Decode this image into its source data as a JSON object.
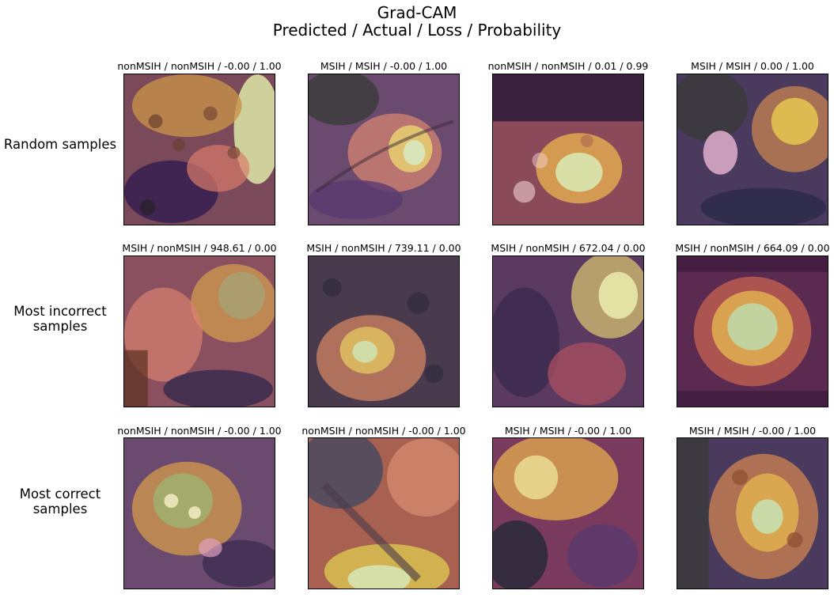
{
  "figure": {
    "title_line1": "Grad-CAM",
    "title_line2": "Predicted / Actual / Loss / Probability"
  },
  "rows": [
    {
      "label": "Random samples",
      "samples": [
        {
          "caption": "nonMSIH / nonMSIH / -0.00 / 1.00",
          "predicted": "nonMSIH",
          "actual": "nonMSIH",
          "loss": "-0.00",
          "probability": "1.00"
        },
        {
          "caption": "MSIH / MSIH / -0.00 / 1.00",
          "predicted": "MSIH",
          "actual": "MSIH",
          "loss": "-0.00",
          "probability": "1.00"
        },
        {
          "caption": "nonMSIH / nonMSIH / 0.01 / 0.99",
          "predicted": "nonMSIH",
          "actual": "nonMSIH",
          "loss": "0.01",
          "probability": "0.99"
        },
        {
          "caption": "MSIH / MSIH / 0.00 / 1.00",
          "predicted": "MSIH",
          "actual": "MSIH",
          "loss": "0.00",
          "probability": "1.00"
        }
      ]
    },
    {
      "label": "Most incorrect\nsamples",
      "samples": [
        {
          "caption": "MSIH / nonMSIH / 948.61 / 0.00",
          "predicted": "MSIH",
          "actual": "nonMSIH",
          "loss": "948.61",
          "probability": "0.00"
        },
        {
          "caption": "MSIH / nonMSIH / 739.11 / 0.00",
          "predicted": "MSIH",
          "actual": "nonMSIH",
          "loss": "739.11",
          "probability": "0.00"
        },
        {
          "caption": "MSIH / nonMSIH / 672.04 / 0.00",
          "predicted": "MSIH",
          "actual": "nonMSIH",
          "loss": "672.04",
          "probability": "0.00"
        },
        {
          "caption": "MSIH / nonMSIH / 664.09 / 0.00",
          "predicted": "MSIH",
          "actual": "nonMSIH",
          "loss": "664.09",
          "probability": "0.00"
        }
      ]
    },
    {
      "label": "Most correct\nsamples",
      "samples": [
        {
          "caption": "nonMSIH / nonMSIH / -0.00 / 1.00",
          "predicted": "nonMSIH",
          "actual": "nonMSIH",
          "loss": "-0.00",
          "probability": "1.00"
        },
        {
          "caption": "nonMSIH / nonMSIH / -0.00 / 1.00",
          "predicted": "nonMSIH",
          "actual": "nonMSIH",
          "loss": "-0.00",
          "probability": "1.00"
        },
        {
          "caption": "MSIH / MSIH / -0.00 / 1.00",
          "predicted": "MSIH",
          "actual": "MSIH",
          "loss": "-0.00",
          "probability": "1.00"
        },
        {
          "caption": "MSIH / MSIH / -0.00 / 1.00",
          "predicted": "MSIH",
          "actual": "MSIH",
          "loss": "-0.00",
          "probability": "1.00"
        }
      ]
    }
  ],
  "colormap": [
    "#1a0a2e",
    "#5b2a6e",
    "#a04a6a",
    "#d87a5a",
    "#e8b04a",
    "#f0e890",
    "#d8f0c0"
  ]
}
